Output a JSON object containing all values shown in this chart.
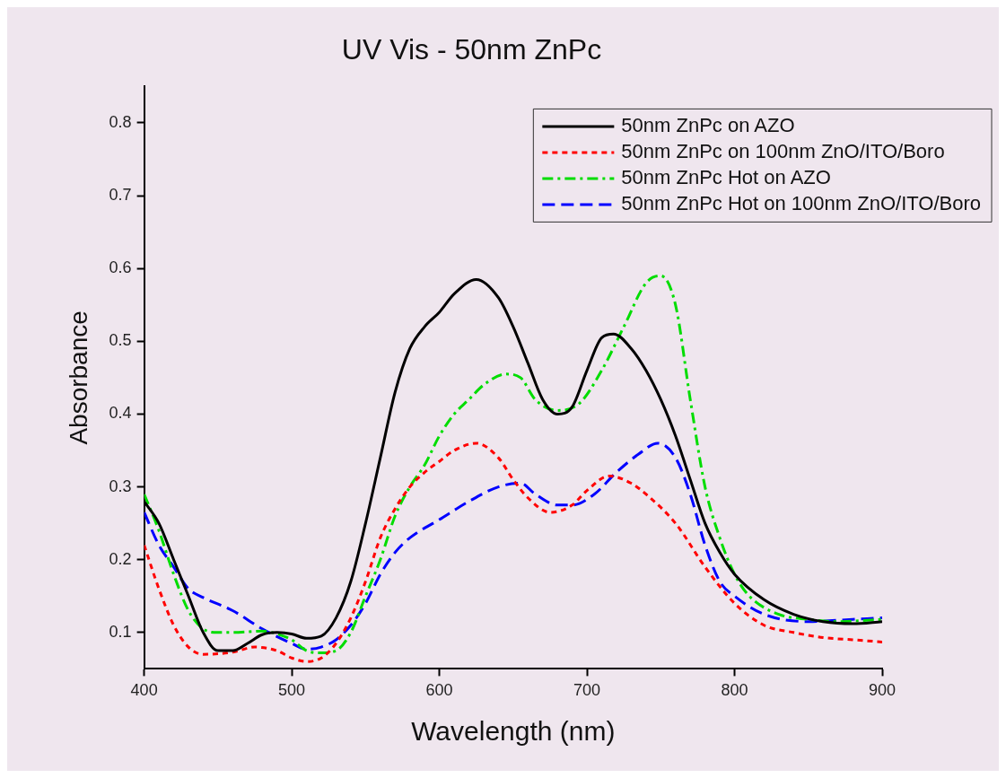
{
  "chart_data": {
    "type": "line",
    "title": "UV Vis - 50nm ZnPc",
    "xlabel": "Wavelength (nm)",
    "ylabel": "Absorbance",
    "xlim": [
      400,
      900
    ],
    "xticks": [
      400,
      500,
      600,
      700,
      800,
      900
    ],
    "ylim": [
      0.05,
      0.85
    ],
    "yticks": [
      0.1,
      0.2,
      0.3,
      0.4,
      0.5,
      0.6,
      0.7,
      0.8
    ],
    "grid": false,
    "legend": "top right",
    "marker": "none",
    "series": [
      {
        "name": "50nm ZnPc on AZO",
        "color": "#000000",
        "line_style": "solid",
        "x": [
          400,
          410,
          420,
          430,
          440,
          450,
          460,
          470,
          480,
          490,
          500,
          510,
          520,
          530,
          540,
          550,
          560,
          570,
          580,
          590,
          600,
          610,
          625,
          640,
          650,
          660,
          670,
          680,
          690,
          700,
          710,
          718,
          730,
          740,
          750,
          760,
          770,
          780,
          790,
          800,
          820,
          840,
          860,
          880,
          900
        ],
        "values": [
          0.28,
          0.25,
          0.2,
          0.15,
          0.1,
          0.075,
          0.075,
          0.085,
          0.097,
          0.1,
          0.098,
          0.092,
          0.095,
          0.12,
          0.17,
          0.25,
          0.34,
          0.43,
          0.49,
          0.52,
          0.54,
          0.565,
          0.585,
          0.56,
          0.52,
          0.47,
          0.42,
          0.4,
          0.41,
          0.46,
          0.505,
          0.51,
          0.49,
          0.46,
          0.42,
          0.37,
          0.31,
          0.25,
          0.21,
          0.18,
          0.145,
          0.125,
          0.115,
          0.112,
          0.115
        ]
      },
      {
        "name": "50nm ZnPc on 100nm ZnO/ITO/Boro",
        "color": "#ff0000",
        "line_style": "dotted",
        "x": [
          400,
          410,
          420,
          430,
          440,
          460,
          475,
          490,
          500,
          510,
          520,
          530,
          540,
          550,
          560,
          570,
          580,
          590,
          600,
          610,
          625,
          640,
          650,
          660,
          675,
          690,
          700,
          715,
          730,
          740,
          760,
          780,
          800,
          820,
          840,
          860,
          880,
          900
        ],
        "values": [
          0.22,
          0.16,
          0.11,
          0.08,
          0.07,
          0.073,
          0.08,
          0.075,
          0.065,
          0.06,
          0.065,
          0.085,
          0.12,
          0.17,
          0.23,
          0.27,
          0.3,
          0.32,
          0.335,
          0.35,
          0.36,
          0.34,
          0.31,
          0.285,
          0.265,
          0.275,
          0.295,
          0.315,
          0.305,
          0.29,
          0.25,
          0.19,
          0.14,
          0.11,
          0.1,
          0.093,
          0.09,
          0.087
        ]
      },
      {
        "name": "50nm ZnPc Hot on AZO",
        "color": "#00dd00",
        "line_style": "dashdot",
        "x": [
          400,
          410,
          420,
          430,
          440,
          450,
          460,
          480,
          490,
          500,
          510,
          520,
          530,
          540,
          550,
          560,
          570,
          580,
          590,
          600,
          610,
          620,
          630,
          645,
          655,
          665,
          680,
          695,
          710,
          725,
          740,
          750,
          760,
          770,
          780,
          790,
          800,
          810,
          830,
          850,
          870,
          900
        ],
        "values": [
          0.29,
          0.24,
          0.18,
          0.13,
          0.105,
          0.1,
          0.1,
          0.102,
          0.098,
          0.09,
          0.075,
          0.072,
          0.075,
          0.1,
          0.15,
          0.2,
          0.26,
          0.3,
          0.33,
          0.37,
          0.4,
          0.42,
          0.44,
          0.455,
          0.45,
          0.42,
          0.405,
          0.415,
          0.46,
          0.52,
          0.58,
          0.59,
          0.55,
          0.42,
          0.3,
          0.23,
          0.18,
          0.15,
          0.125,
          0.118,
          0.115,
          0.118
        ]
      },
      {
        "name": "50nm ZnPc Hot on 100nm ZnO/ITO/Boro",
        "color": "#0000ff",
        "line_style": "dashed",
        "x": [
          400,
          410,
          420,
          430,
          440,
          460,
          480,
          500,
          510,
          520,
          530,
          540,
          550,
          560,
          570,
          580,
          600,
          620,
          640,
          655,
          665,
          680,
          690,
          705,
          720,
          735,
          748,
          760,
          770,
          780,
          790,
          800,
          820,
          850,
          880,
          900
        ],
        "values": [
          0.265,
          0.22,
          0.19,
          0.16,
          0.148,
          0.13,
          0.105,
          0.085,
          0.077,
          0.08,
          0.09,
          0.11,
          0.14,
          0.18,
          0.21,
          0.23,
          0.255,
          0.28,
          0.3,
          0.305,
          0.29,
          0.275,
          0.275,
          0.29,
          0.32,
          0.345,
          0.36,
          0.34,
          0.29,
          0.22,
          0.17,
          0.15,
          0.125,
          0.115,
          0.118,
          0.12
        ]
      }
    ]
  }
}
